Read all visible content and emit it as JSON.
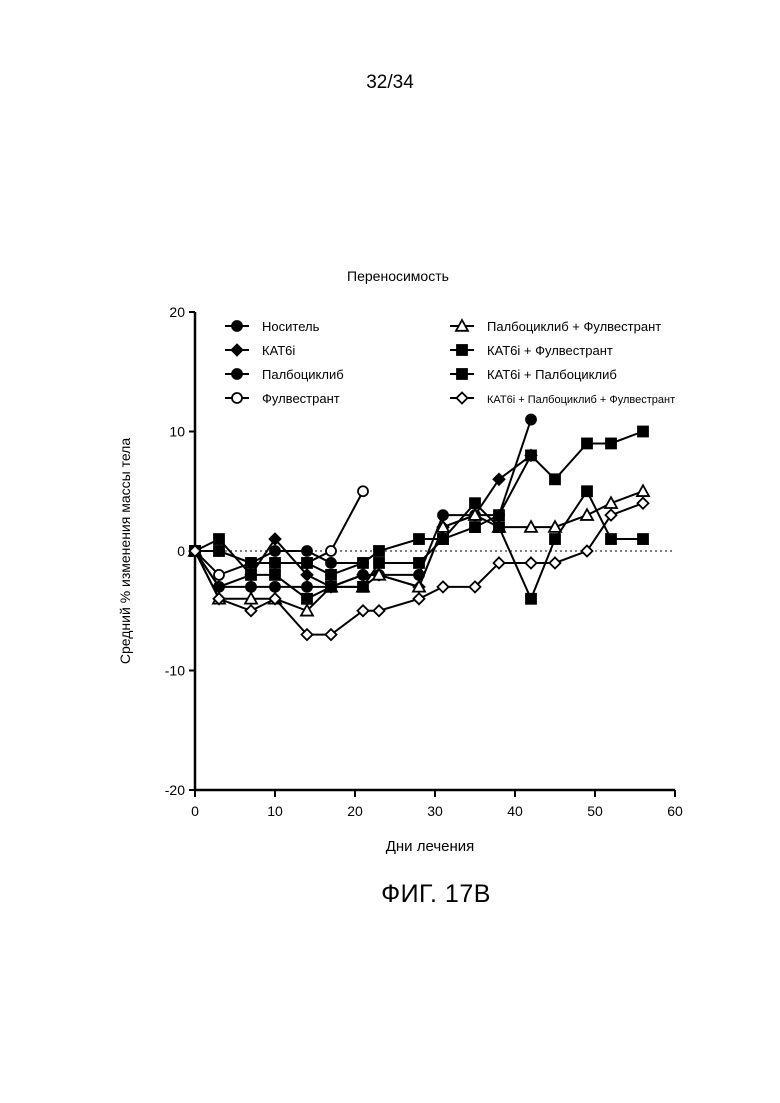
{
  "page": {
    "number": "32/34",
    "caption": "ФИГ. 17B"
  },
  "chart_data": {
    "type": "line",
    "title": "Переносимость",
    "xlabel": "Дни лечения",
    "ylabel": "Средний % изменения массы тела",
    "xlim": [
      0,
      60
    ],
    "ylim": [
      -20,
      20
    ],
    "xticks": [
      0,
      10,
      20,
      30,
      40,
      50,
      60
    ],
    "yticks": [
      -20,
      -10,
      0,
      10,
      20
    ],
    "zero_line": "dotted",
    "legend_placement": "top",
    "series": [
      {
        "name": "Носитель",
        "marker": "circle-filled",
        "x": [
          0,
          3,
          7,
          10,
          14,
          17,
          21
        ],
        "y": [
          0,
          0,
          -1,
          0,
          0,
          -1,
          -1
        ]
      },
      {
        "name": "КАТ6i",
        "marker": "diamond-filled",
        "x": [
          0,
          3,
          7,
          10,
          14,
          17,
          21,
          23,
          28,
          31,
          35,
          38,
          42
        ],
        "y": [
          0,
          -3,
          -2,
          1,
          -2,
          -3,
          -2,
          -2,
          -3,
          2,
          3,
          6,
          8
        ]
      },
      {
        "name": "Палбоциклиб",
        "marker": "circle-filled",
        "x": [
          0,
          3,
          7,
          10,
          14,
          17,
          21,
          23,
          28,
          31,
          35,
          38,
          42
        ],
        "y": [
          0,
          -3,
          -3,
          -3,
          -3,
          -3,
          -2,
          -2,
          -2,
          3,
          3,
          3,
          11
        ]
      },
      {
        "name": "Фулвестрант",
        "marker": "circle-open",
        "x": [
          0,
          3,
          7,
          10,
          14,
          17,
          21
        ],
        "y": [
          0,
          -2,
          -1,
          -1,
          -1,
          0,
          5
        ]
      },
      {
        "name": "Палбоциклиб + Фулвестрант",
        "marker": "triangle-open",
        "x": [
          0,
          3,
          7,
          10,
          14,
          17,
          21,
          23,
          28,
          31,
          35,
          38,
          42,
          45,
          49,
          52,
          56
        ],
        "y": [
          0,
          -4,
          -4,
          -4,
          -5,
          -3,
          -3,
          -2,
          -3,
          2,
          3,
          2,
          2,
          2,
          3,
          4,
          5
        ]
      },
      {
        "name": "КАТ6i + Фулвестрант",
        "marker": "square-filled",
        "x": [
          0,
          3,
          7,
          10,
          14,
          17,
          21,
          23,
          28,
          31,
          35,
          38,
          42,
          45,
          49,
          52,
          56
        ],
        "y": [
          0,
          1,
          -2,
          -2,
          -4,
          -3,
          -3,
          -1,
          -1,
          1,
          4,
          2,
          -4,
          1,
          5,
          1,
          1
        ]
      },
      {
        "name": "КАТ6i + Палбоциклиб",
        "marker": "square-filled",
        "x": [
          0,
          3,
          7,
          10,
          14,
          17,
          21,
          23,
          28,
          31,
          35,
          38,
          42,
          45,
          49,
          52,
          56
        ],
        "y": [
          0,
          0,
          -1,
          -1,
          -1,
          -2,
          -1,
          0,
          1,
          1,
          2,
          3,
          8,
          6,
          9,
          9,
          10
        ]
      },
      {
        "name": "КАТ6i + Палбоциклиб + Фулвестрант",
        "marker": "diamond-open",
        "x": [
          0,
          3,
          7,
          10,
          14,
          17,
          21,
          23,
          28,
          31,
          35,
          38,
          42,
          45,
          49,
          52,
          56
        ],
        "y": [
          0,
          -4,
          -5,
          -4,
          -7,
          -7,
          -5,
          -5,
          -4,
          -3,
          -3,
          -1,
          -1,
          -1,
          0,
          3,
          4
        ]
      }
    ]
  }
}
